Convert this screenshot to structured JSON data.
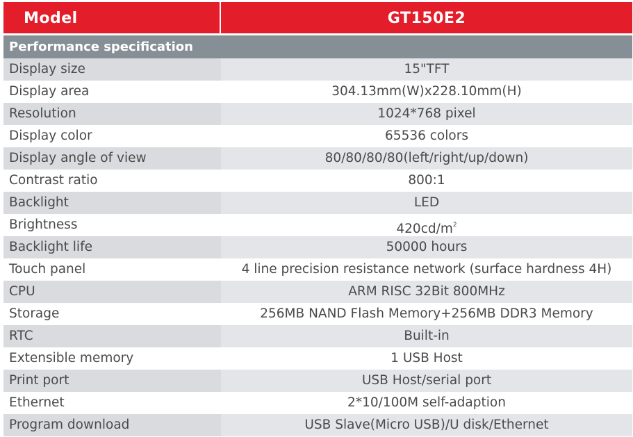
{
  "header": {
    "model_label": "Model",
    "model_value": "GT150E2"
  },
  "section": {
    "title": "Performance specification"
  },
  "colors": {
    "header_red": "#e41d2a",
    "section_gray": "#868f95",
    "row_shade_label": "#d9dbde",
    "row_shade_value": "#e3e5e8",
    "text": "#4a4a4a"
  },
  "rows": [
    {
      "label": "Display size",
      "value": "15\"TFT"
    },
    {
      "label": "Display area",
      "value": "304.13mm(W)x228.10mm(H)"
    },
    {
      "label": "Resolution",
      "value": "1024*768 pixel"
    },
    {
      "label": "Display color",
      "value": "65536 colors"
    },
    {
      "label": "Display angle of view",
      "value": "80/80/80/80(left/right/up/down)"
    },
    {
      "label": "Contrast ratio",
      "value": "800:1"
    },
    {
      "label": "Backlight",
      "value": "LED"
    },
    {
      "label": "Brightness",
      "value": "420cd/m",
      "sup": "2"
    },
    {
      "label": "Backlight life",
      "value": "50000 hours"
    },
    {
      "label": "Touch panel",
      "value": "4 line precision resistance network (surface hardness 4H)"
    },
    {
      "label": "CPU",
      "value": "ARM RISC 32Bit 800MHz"
    },
    {
      "label": "Storage",
      "value": "256MB NAND Flash Memory+256MB DDR3 Memory"
    },
    {
      "label": "RTC",
      "value": "Built-in"
    },
    {
      "label": "Extensible memory",
      "value": "1 USB Host"
    },
    {
      "label": "Print port",
      "value": "USB Host/serial port"
    },
    {
      "label": "Ethernet",
      "value": "2*10/100M self-adaption"
    },
    {
      "label": "Program download",
      "value": "USB Slave(Micro USB)/U disk/Ethernet"
    }
  ]
}
